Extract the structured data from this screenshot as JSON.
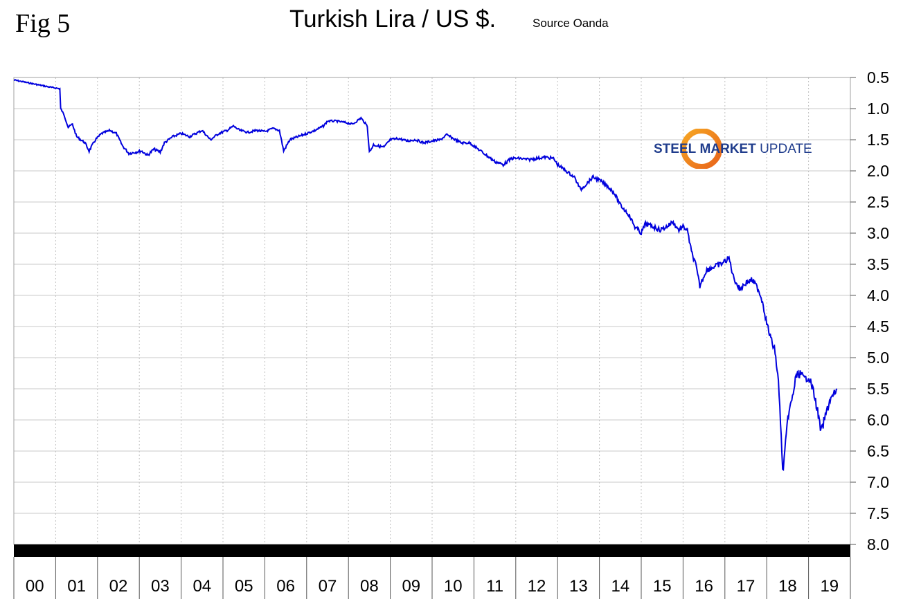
{
  "header": {
    "fig_label": "Fig 5",
    "title": "Turkish Lira / US $.",
    "source": "Source Oanda"
  },
  "logo": {
    "word1": "STEEL",
    "word2": "MARKET",
    "word3": "UPDATE",
    "colors": {
      "text": "#1f3c8c",
      "ring": "#e8641b",
      "ring_light": "#f6a623"
    }
  },
  "chart_data": {
    "type": "line",
    "title": "Turkish Lira / US $.",
    "y_axis": {
      "inverted": true,
      "min": 0.5,
      "max": 8.0,
      "position": "right",
      "ticks": [
        "0.5",
        "1.0",
        "1.5",
        "2.0",
        "2.5",
        "3.0",
        "3.5",
        "4.0",
        "4.5",
        "5.0",
        "5.5",
        "6.0",
        "6.5",
        "7.0",
        "7.5",
        "8.0"
      ]
    },
    "x_axis": {
      "categories": [
        "00",
        "01",
        "02",
        "03",
        "04",
        "05",
        "06",
        "07",
        "08",
        "09",
        "10",
        "11",
        "12",
        "13",
        "14",
        "15",
        "16",
        "17",
        "18",
        "19"
      ]
    },
    "grid": {
      "horizontal": true,
      "vertical": "dotted"
    },
    "series": [
      {
        "color": "#0000dd",
        "points": [
          [
            0.0,
            0.54
          ],
          [
            0.3,
            0.58
          ],
          [
            0.6,
            0.62
          ],
          [
            0.9,
            0.66
          ],
          [
            1.1,
            0.68
          ],
          [
            1.12,
            1.0
          ],
          [
            1.2,
            1.1
          ],
          [
            1.3,
            1.3
          ],
          [
            1.4,
            1.25
          ],
          [
            1.5,
            1.45
          ],
          [
            1.7,
            1.55
          ],
          [
            1.8,
            1.68
          ],
          [
            1.95,
            1.5
          ],
          [
            2.1,
            1.4
          ],
          [
            2.3,
            1.35
          ],
          [
            2.45,
            1.4
          ],
          [
            2.6,
            1.6
          ],
          [
            2.75,
            1.72
          ],
          [
            2.9,
            1.7
          ],
          [
            3.05,
            1.68
          ],
          [
            3.2,
            1.75
          ],
          [
            3.35,
            1.65
          ],
          [
            3.5,
            1.7
          ],
          [
            3.6,
            1.55
          ],
          [
            3.8,
            1.45
          ],
          [
            4.0,
            1.4
          ],
          [
            4.2,
            1.45
          ],
          [
            4.35,
            1.4
          ],
          [
            4.5,
            1.35
          ],
          [
            4.7,
            1.5
          ],
          [
            4.9,
            1.4
          ],
          [
            5.1,
            1.35
          ],
          [
            5.25,
            1.28
          ],
          [
            5.4,
            1.35
          ],
          [
            5.6,
            1.38
          ],
          [
            5.8,
            1.35
          ],
          [
            6.0,
            1.37
          ],
          [
            6.2,
            1.32
          ],
          [
            6.35,
            1.35
          ],
          [
            6.45,
            1.68
          ],
          [
            6.6,
            1.5
          ],
          [
            6.8,
            1.45
          ],
          [
            7.0,
            1.4
          ],
          [
            7.2,
            1.35
          ],
          [
            7.4,
            1.28
          ],
          [
            7.5,
            1.2
          ],
          [
            7.7,
            1.2
          ],
          [
            7.9,
            1.22
          ],
          [
            8.1,
            1.25
          ],
          [
            8.3,
            1.15
          ],
          [
            8.45,
            1.28
          ],
          [
            8.5,
            1.7
          ],
          [
            8.6,
            1.58
          ],
          [
            8.7,
            1.6
          ],
          [
            8.85,
            1.62
          ],
          [
            9.0,
            1.5
          ],
          [
            9.2,
            1.48
          ],
          [
            9.4,
            1.52
          ],
          [
            9.6,
            1.5
          ],
          [
            9.8,
            1.55
          ],
          [
            10.0,
            1.52
          ],
          [
            10.2,
            1.5
          ],
          [
            10.35,
            1.42
          ],
          [
            10.5,
            1.48
          ],
          [
            10.7,
            1.55
          ],
          [
            10.9,
            1.55
          ],
          [
            11.1,
            1.65
          ],
          [
            11.3,
            1.75
          ],
          [
            11.5,
            1.85
          ],
          [
            11.7,
            1.9
          ],
          [
            11.9,
            1.8
          ],
          [
            12.1,
            1.8
          ],
          [
            12.3,
            1.82
          ],
          [
            12.5,
            1.8
          ],
          [
            12.7,
            1.78
          ],
          [
            12.9,
            1.8
          ],
          [
            13.0,
            1.9
          ],
          [
            13.2,
            2.0
          ],
          [
            13.4,
            2.1
          ],
          [
            13.55,
            2.3
          ],
          [
            13.7,
            2.2
          ],
          [
            13.85,
            2.1
          ],
          [
            14.0,
            2.15
          ],
          [
            14.2,
            2.25
          ],
          [
            14.35,
            2.35
          ],
          [
            14.5,
            2.55
          ],
          [
            14.7,
            2.7
          ],
          [
            14.85,
            2.9
          ],
          [
            15.0,
            3.0
          ],
          [
            15.1,
            2.85
          ],
          [
            15.3,
            2.9
          ],
          [
            15.45,
            2.95
          ],
          [
            15.6,
            2.9
          ],
          [
            15.75,
            2.82
          ],
          [
            15.9,
            2.95
          ],
          [
            16.0,
            2.9
          ],
          [
            16.1,
            2.95
          ],
          [
            16.2,
            3.3
          ],
          [
            16.3,
            3.5
          ],
          [
            16.4,
            3.85
          ],
          [
            16.55,
            3.6
          ],
          [
            16.7,
            3.55
          ],
          [
            16.9,
            3.5
          ],
          [
            17.1,
            3.4
          ],
          [
            17.2,
            3.7
          ],
          [
            17.35,
            3.9
          ],
          [
            17.5,
            3.8
          ],
          [
            17.65,
            3.75
          ],
          [
            17.8,
            3.9
          ],
          [
            17.9,
            4.1
          ],
          [
            18.0,
            4.45
          ],
          [
            18.1,
            4.7
          ],
          [
            18.2,
            4.9
          ],
          [
            18.28,
            5.4
          ],
          [
            18.33,
            6.0
          ],
          [
            18.38,
            6.85
          ],
          [
            18.45,
            6.4
          ],
          [
            18.52,
            5.9
          ],
          [
            18.6,
            5.7
          ],
          [
            18.7,
            5.3
          ],
          [
            18.8,
            5.25
          ],
          [
            18.9,
            5.35
          ],
          [
            19.0,
            5.3
          ],
          [
            19.1,
            5.5
          ],
          [
            19.2,
            5.8
          ],
          [
            19.3,
            6.2
          ],
          [
            19.4,
            5.95
          ],
          [
            19.5,
            5.7
          ],
          [
            19.6,
            5.6
          ],
          [
            19.68,
            5.5
          ]
        ]
      }
    ]
  }
}
